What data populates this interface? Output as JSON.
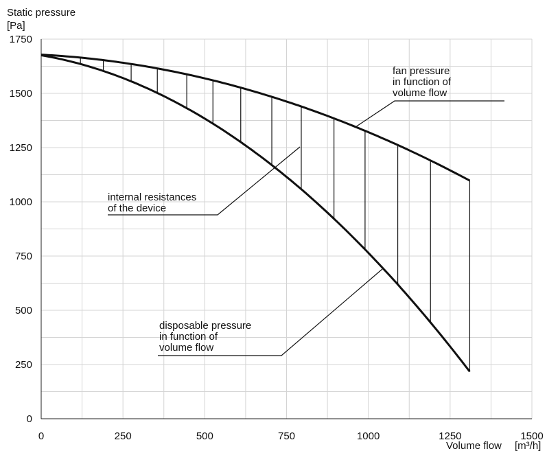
{
  "chart_data": {
    "type": "line",
    "title": "",
    "ylabel_line1": "Static pressure",
    "ylabel_line2": "[Pa]",
    "xlabel": "Volume flow",
    "xunit": "[m³/h]",
    "xlim": [
      0,
      1500
    ],
    "ylim": [
      0,
      1750
    ],
    "xticks": [
      "0",
      "250",
      "500",
      "750",
      "1000",
      "1250",
      "1500"
    ],
    "yticks": [
      "0",
      "250",
      "500",
      "750",
      "1000",
      "1250",
      "1500",
      "1750"
    ],
    "grid": true,
    "series": [
      {
        "name": "fan pressure in function of volume flow",
        "x": [
          0,
          250,
          500,
          750,
          1000,
          1250,
          1310
        ],
        "y": [
          1680,
          1640,
          1565,
          1465,
          1325,
          1140,
          1100
        ]
      },
      {
        "name": "disposable pressure in function of volume flow",
        "x": [
          0,
          250,
          500,
          750,
          1000,
          1250,
          1310
        ],
        "y": [
          1680,
          1565,
          1375,
          1130,
          760,
          335,
          215
        ]
      }
    ],
    "hatch_x": [
      120,
      190,
      275,
      355,
      445,
      525,
      610,
      705,
      795,
      895,
      990,
      1090,
      1190,
      1310
    ],
    "annotations": {
      "fan_pressure": [
        "fan pressure",
        "in function of",
        "volume flow"
      ],
      "internal": [
        "internal resistances",
        "of the device"
      ],
      "disposable": [
        "disposable pressure",
        "in function of",
        "volume flow"
      ]
    }
  }
}
